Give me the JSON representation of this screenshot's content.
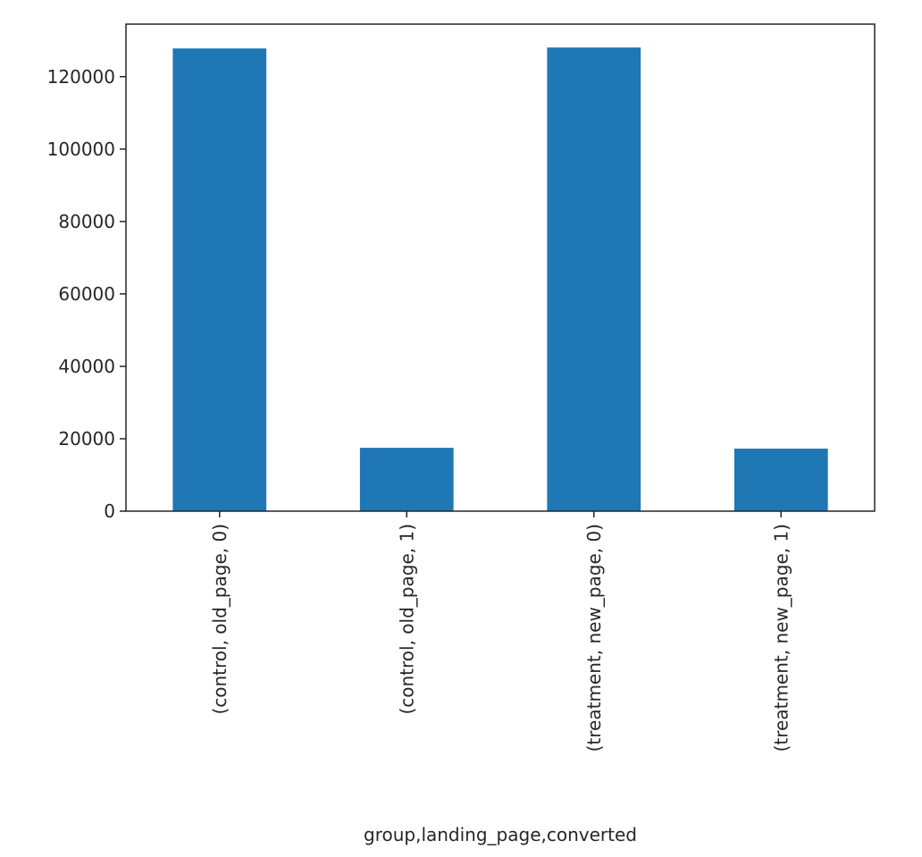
{
  "chart_data": {
    "type": "bar",
    "categories": [
      "(control, old_page, 0)",
      "(control, old_page, 1)",
      "(treatment, new_page, 0)",
      "(treatment, new_page, 1)"
    ],
    "values": [
      127785,
      17489,
      128047,
      17264
    ],
    "xlabel": "group,landing_page,converted",
    "ylabel": "",
    "ylim": [
      0,
      134500
    ],
    "yticks": [
      0,
      20000,
      40000,
      60000,
      80000,
      100000,
      120000
    ],
    "ytick_labels": [
      "0",
      "20000",
      "40000",
      "60000",
      "80000",
      "100000",
      "120000"
    ],
    "grid": false,
    "legend": "none",
    "bar_color": "#1f77b4",
    "axis_color": "#262626"
  }
}
